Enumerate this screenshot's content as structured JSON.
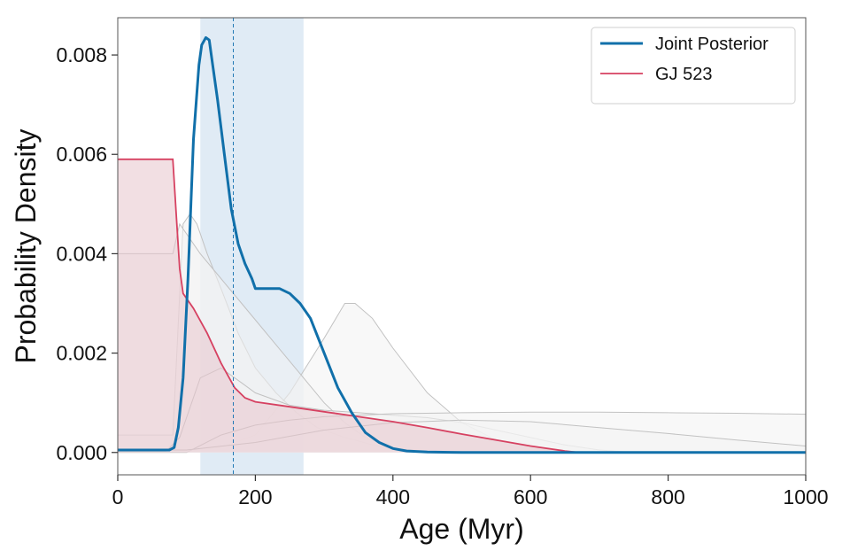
{
  "chart_data": {
    "type": "line",
    "xlabel": "Age (Myr)",
    "ylabel": "Probability Density",
    "xlim": [
      0,
      1000
    ],
    "ylim": [
      -0.00045,
      0.00875
    ],
    "x_ticks": [
      "0",
      "200",
      "400",
      "600",
      "800",
      "1000"
    ],
    "x_tick_values": [
      0,
      200,
      400,
      600,
      800,
      1000
    ],
    "y_ticks": [
      "0.000",
      "0.002",
      "0.004",
      "0.006",
      "0.008"
    ],
    "y_tick_values": [
      0,
      0.002,
      0.004,
      0.006,
      0.008
    ],
    "grid": false,
    "legend_position": "top-right",
    "shaded_interval": {
      "x_range": [
        120,
        270
      ],
      "color": "#cfe0ef"
    },
    "reference_line": {
      "x": 168,
      "style": "dashed",
      "color": "#1f77b4"
    },
    "series": [
      {
        "name": "Joint Posterior",
        "color": "#1170aa",
        "role": "highlight",
        "points": [
          [
            0,
            5e-05
          ],
          [
            75,
            5e-05
          ],
          [
            82,
            0.0001
          ],
          [
            88,
            0.0005
          ],
          [
            95,
            0.0015
          ],
          [
            102,
            0.0035
          ],
          [
            110,
            0.0063
          ],
          [
            118,
            0.0078
          ],
          [
            122,
            0.0082
          ],
          [
            128,
            0.00835
          ],
          [
            133,
            0.0083
          ],
          [
            138,
            0.0078
          ],
          [
            145,
            0.0071
          ],
          [
            155,
            0.006
          ],
          [
            165,
            0.0049
          ],
          [
            175,
            0.0042
          ],
          [
            185,
            0.0038
          ],
          [
            195,
            0.0035
          ],
          [
            200,
            0.0033
          ],
          [
            215,
            0.0033
          ],
          [
            235,
            0.0033
          ],
          [
            250,
            0.0032
          ],
          [
            265,
            0.003
          ],
          [
            280,
            0.0027
          ],
          [
            300,
            0.002
          ],
          [
            320,
            0.0013
          ],
          [
            340,
            0.0008
          ],
          [
            360,
            0.0004
          ],
          [
            380,
            0.0002
          ],
          [
            400,
            8e-05
          ],
          [
            420,
            3e-05
          ],
          [
            450,
            1e-05
          ],
          [
            500,
            0.0
          ],
          [
            1000,
            0.0
          ]
        ]
      },
      {
        "name": "GJ 523",
        "color": "#d64161",
        "fill": "#e7c4cc",
        "role": "highlight",
        "points": [
          [
            0,
            0.0059
          ],
          [
            80,
            0.0059
          ],
          [
            85,
            0.0048
          ],
          [
            90,
            0.0037
          ],
          [
            95,
            0.0032
          ],
          [
            110,
            0.0029
          ],
          [
            130,
            0.0024
          ],
          [
            150,
            0.0018
          ],
          [
            170,
            0.0013
          ],
          [
            185,
            0.0011
          ],
          [
            200,
            0.00102
          ],
          [
            250,
            0.00092
          ],
          [
            300,
            0.00082
          ],
          [
            350,
            0.00072
          ],
          [
            400,
            0.00062
          ],
          [
            450,
            0.0005
          ],
          [
            500,
            0.00037
          ],
          [
            550,
            0.00025
          ],
          [
            600,
            0.00013
          ],
          [
            650,
            3e-05
          ],
          [
            670,
            0.0
          ],
          [
            1000,
            0.0
          ]
        ]
      },
      {
        "name": "",
        "color": "#c2c2c2",
        "fill": "#f2f2f2",
        "role": "background",
        "points": [
          [
            0,
            5e-05
          ],
          [
            100,
            5e-05
          ],
          [
            150,
            0.0001
          ],
          [
            200,
            0.00035
          ],
          [
            250,
            0.0012
          ],
          [
            300,
            0.0023
          ],
          [
            330,
            0.003
          ],
          [
            345,
            0.003
          ],
          [
            370,
            0.0027
          ],
          [
            400,
            0.0021
          ],
          [
            450,
            0.0012
          ],
          [
            500,
            0.0006
          ],
          [
            550,
            0.00025
          ],
          [
            600,
            0.0001
          ],
          [
            650,
            3e-05
          ],
          [
            700,
            0.0
          ],
          [
            1000,
            0.0
          ]
        ]
      },
      {
        "name": "",
        "color": "#c2c2c2",
        "fill": "#f2f2f2",
        "role": "background",
        "points": [
          [
            0,
            0.00035
          ],
          [
            80,
            0.00035
          ],
          [
            95,
            0.0046
          ],
          [
            105,
            0.0048
          ],
          [
            115,
            0.0046
          ],
          [
            130,
            0.004
          ],
          [
            150,
            0.0033
          ],
          [
            175,
            0.0024
          ],
          [
            200,
            0.0017
          ],
          [
            230,
            0.0012
          ],
          [
            260,
            0.0008
          ],
          [
            290,
            0.0005
          ],
          [
            330,
            0.0003
          ],
          [
            380,
            0.00012
          ],
          [
            450,
            3e-05
          ],
          [
            500,
            0.0
          ],
          [
            1000,
            0.0
          ]
        ]
      },
      {
        "name": "",
        "color": "#c2c2c2",
        "fill": "#f2f2f2",
        "role": "background",
        "points": [
          [
            0,
            0.004
          ],
          [
            80,
            0.004
          ],
          [
            90,
            0.0046
          ],
          [
            100,
            0.0044
          ],
          [
            120,
            0.004
          ],
          [
            150,
            0.0035
          ],
          [
            180,
            0.003
          ],
          [
            210,
            0.0025
          ],
          [
            240,
            0.002
          ],
          [
            270,
            0.0015
          ],
          [
            300,
            0.001
          ],
          [
            330,
            0.0006
          ],
          [
            360,
            0.0003
          ],
          [
            400,
            0.0001
          ],
          [
            450,
            0.0
          ],
          [
            1000,
            0.0
          ]
        ]
      },
      {
        "name": "",
        "color": "#c2c2c2",
        "fill": "#f2f2f2",
        "role": "background",
        "points": [
          [
            0,
            2e-05
          ],
          [
            70,
            2e-05
          ],
          [
            90,
            0.0003
          ],
          [
            120,
            0.0015
          ],
          [
            150,
            0.0017
          ],
          [
            180,
            0.0014
          ],
          [
            200,
            0.0012
          ],
          [
            250,
            0.00095
          ],
          [
            300,
            0.00085
          ],
          [
            350,
            0.0008
          ],
          [
            400,
            0.00075
          ],
          [
            450,
            0.0007
          ],
          [
            500,
            0.0006
          ],
          [
            550,
            0.00045
          ],
          [
            600,
            0.0003
          ],
          [
            650,
            0.00015
          ],
          [
            700,
            5e-05
          ],
          [
            750,
            0.0
          ],
          [
            1000,
            0.0
          ]
        ]
      },
      {
        "name": "",
        "color": "#c2c2c2",
        "fill": "#f2f2f2",
        "role": "background",
        "points": [
          [
            0,
            0.0
          ],
          [
            100,
            0.0
          ],
          [
            150,
            0.00035
          ],
          [
            200,
            0.00055
          ],
          [
            250,
            0.00065
          ],
          [
            300,
            0.00072
          ],
          [
            400,
            0.00078
          ],
          [
            500,
            0.0008
          ],
          [
            600,
            0.00081
          ],
          [
            700,
            0.00081
          ],
          [
            800,
            0.0008
          ],
          [
            900,
            0.00079
          ],
          [
            1000,
            0.00077
          ]
        ]
      },
      {
        "name": "",
        "color": "#c2c2c2",
        "fill": "#f2f2f2",
        "role": "background",
        "points": [
          [
            0,
            5e-05
          ],
          [
            100,
            5e-05
          ],
          [
            200,
            0.0002
          ],
          [
            300,
            0.00045
          ],
          [
            400,
            0.0006
          ],
          [
            500,
            0.00065
          ],
          [
            600,
            0.00062
          ],
          [
            700,
            0.0005
          ],
          [
            800,
            0.00038
          ],
          [
            900,
            0.00025
          ],
          [
            1000,
            0.00013
          ]
        ]
      },
      {
        "name": "",
        "color": "#7a3a8a",
        "role": "baseline",
        "points": [
          [
            600,
            0.0
          ],
          [
            1000,
            0.0
          ]
        ]
      }
    ]
  }
}
